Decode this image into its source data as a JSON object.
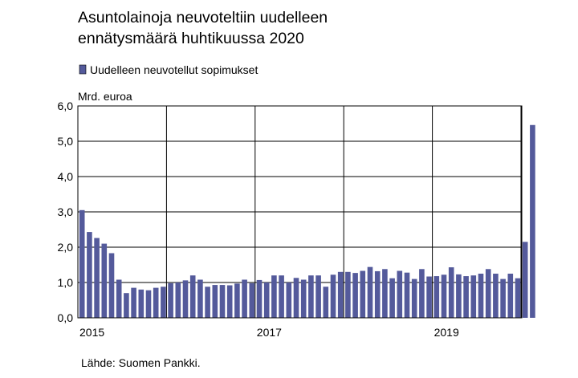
{
  "chart_data": {
    "type": "bar",
    "title_lines": [
      "Asuntolainoja neuvoteltiin uudelleen",
      "ennätysmäärä huhtikuussa 2020"
    ],
    "ylabel": "Mrd. euroa",
    "xlabel": "",
    "ylim": [
      0,
      6
    ],
    "yticks": [
      "0,0",
      "1,0",
      "2,0",
      "3,0",
      "4,0",
      "5,0",
      "6,0"
    ],
    "xtick_labels": [
      {
        "label": "2015",
        "month_index": 0
      },
      {
        "label": "2017",
        "month_index": 24
      },
      {
        "label": "2019",
        "month_index": 48
      }
    ],
    "grid": true,
    "legend_position": "top-left",
    "color": "#545a9b",
    "series": [
      {
        "name": "Uudelleen neuvotellut sopimukset",
        "start": "2015-01",
        "values": [
          3.05,
          2.43,
          2.26,
          2.1,
          1.83,
          1.08,
          0.7,
          0.85,
          0.8,
          0.78,
          0.85,
          0.88,
          0.98,
          1.0,
          1.06,
          1.2,
          1.08,
          0.88,
          0.93,
          0.93,
          0.92,
          0.97,
          1.08,
          0.98,
          1.07,
          1.0,
          1.2,
          1.2,
          1.0,
          1.13,
          1.08,
          1.2,
          1.2,
          0.88,
          1.22,
          1.3,
          1.3,
          1.27,
          1.33,
          1.44,
          1.32,
          1.38,
          1.12,
          1.33,
          1.28,
          1.1,
          1.38,
          1.17,
          1.18,
          1.22,
          1.43,
          1.23,
          1.18,
          1.2,
          1.25,
          1.38,
          1.25,
          1.1,
          1.25,
          1.12,
          2.15,
          5.46
        ]
      }
    ]
  },
  "source": "Lähde: Suomen Pankki."
}
